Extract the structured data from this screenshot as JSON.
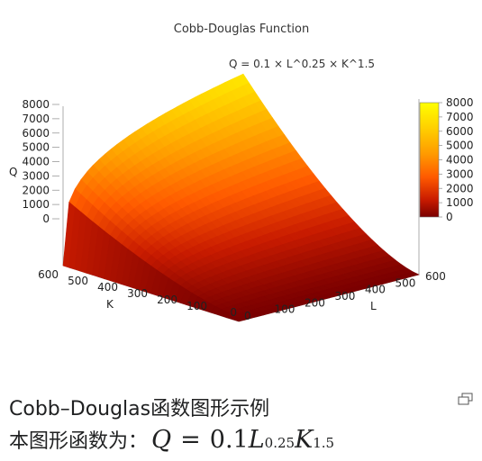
{
  "chart_data": {
    "type": "surface",
    "title": "Cobb-Douglas Function",
    "legend_label": "Q = 0.1 × L^0.25 × K^1.5",
    "zlabel": "Q",
    "xlabel": "L",
    "ylabel": "K",
    "z_ticks": [
      "8000",
      "7000",
      "6000",
      "5000",
      "4000",
      "3000",
      "2000",
      "1000",
      "0"
    ],
    "colorbar_ticks": [
      "8000",
      "7000",
      "6000",
      "5000",
      "4000",
      "3000",
      "2000",
      "1000",
      "0"
    ],
    "L_ticks": [
      "0",
      "100",
      "200",
      "300",
      "400",
      "500",
      "600"
    ],
    "K_ticks": [
      "600",
      "500",
      "400",
      "300",
      "200",
      "100",
      "0"
    ],
    "zlim": [
      0,
      8000
    ],
    "L_range": [
      0,
      600
    ],
    "K_range": [
      0,
      600
    ],
    "coefficients": {
      "A": 0.1,
      "alpha": 0.25,
      "beta": 1.5
    },
    "colormap": [
      "#7a0000",
      "#c81b00",
      "#ff5a00",
      "#ff9a00",
      "#ffd000",
      "#ffff00"
    ]
  },
  "caption": {
    "line1": "Cobb–Douglas函数图形示例",
    "line2_prefix": "本图形函数为：",
    "math": {
      "lhs": "Q",
      "eq": "=",
      "coef": "0.1",
      "v1": "L",
      "e1": "0.25",
      "v2": "K",
      "e2": "1.5"
    }
  },
  "icons": {
    "enlarge": "enlarge-icon"
  }
}
